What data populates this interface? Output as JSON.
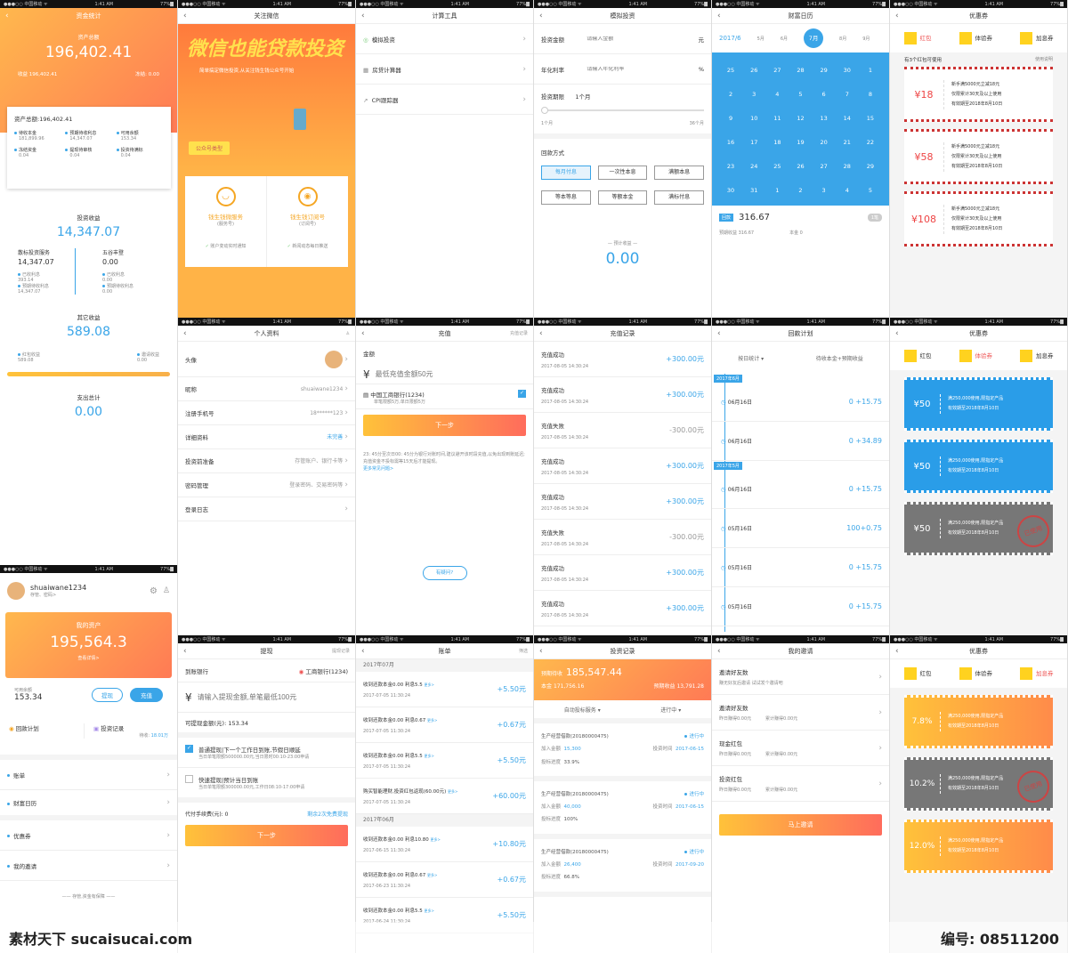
{
  "status": {
    "carrier": "●●●○○ 中国移动 ᯤ",
    "time": "1:41 AM",
    "battery": "77%▇"
  },
  "s1": {
    "title": "资金统计",
    "total_label": "资产总额",
    "total": "196,402.41",
    "sub_left": "收益 196,402.41",
    "sub_right": "冻结: 0.00",
    "card_title": "资产总额:196,402.41",
    "grid": [
      [
        "待收本金",
        "181,899.96"
      ],
      [
        "预期待收利息",
        "14,347.07"
      ],
      [
        "可用余额",
        "153.34"
      ],
      [
        "冻结资金",
        "0.04"
      ],
      [
        "提现待审核",
        "0.04"
      ],
      [
        "投资待满标",
        "0.04"
      ]
    ],
    "inv_label": "投资收益",
    "inv": "14,347.07",
    "col1": "散标投资服务",
    "col1v": "14,347.07",
    "col2": "五谷丰登",
    "col2v": "0.00",
    "c1a": "已收利息",
    "c1av": "393.14",
    "c1b": "预期待收利息",
    "c1bv": "14,347.07",
    "c2a": "已收利息",
    "c2av": "0.00",
    "c2b": "预期待收利息",
    "c2bv": "0.00",
    "other_label": "其它收益",
    "other": "589.08",
    "o1": "红包收益",
    "o1v": "589.08",
    "o2": "邀请收益",
    "o2v": "0.00",
    "exp_label": "支出总计",
    "exp": "0.00"
  },
  "s2": {
    "nav": "关注微信",
    "headline": "微信也能贷款投资",
    "sub": "简单搞定微信投资,从关注钱生钱公众号开始",
    "tag": "公众号类型",
    "c1": "钱生钱微服务",
    "c1s": "(服务号)",
    "c1f": "账户变动实时通知",
    "c2": "钱生钱订阅号",
    "c2s": "(订阅号)",
    "c2f": "新闻动态每日推送"
  },
  "s3": {
    "nav": "计算工具",
    "items": [
      "模拟投资",
      "房贷计算器",
      "CPI跟踪器"
    ]
  },
  "s4": {
    "nav": "模拟投资",
    "f1": "投资金额",
    "f1p": "请输入金额",
    "f1u": "元",
    "f2": "年化利率",
    "f2p": "请输入年化利率",
    "f2u": "%",
    "f3": "投资期限",
    "f3v": "1个月",
    "min": "1个月",
    "max": "36个月",
    "method": "回款方式",
    "m": [
      "每月付息",
      "一次性本息",
      "满额本息",
      "等本等息",
      "等额本金",
      "满标付息"
    ],
    "est": "预计收益",
    "estv": "0.00"
  },
  "s5": {
    "nav": "财富日历",
    "year": "2017/6",
    "months": [
      "5月",
      "6月",
      "7月",
      "8月",
      "9月"
    ],
    "days": [
      [
        "25",
        "26",
        "27",
        "28",
        "29",
        "30",
        "1"
      ],
      [
        "2",
        "3",
        "4",
        "5",
        "6",
        "7",
        "8"
      ],
      [
        "9",
        "10",
        "11",
        "12",
        "13",
        "14",
        "15"
      ],
      [
        "16",
        "17",
        "18",
        "19",
        "20",
        "21",
        "22"
      ],
      [
        "23",
        "24",
        "25",
        "26",
        "27",
        "28",
        "29"
      ],
      [
        "30",
        "31",
        "1",
        "2",
        "3",
        "4",
        "5"
      ]
    ],
    "tag": "回款",
    "amt": "316.67",
    "cnt": "1笔",
    "exp": "预期收益 316.67",
    "pri": "本金 0"
  },
  "s6": {
    "nav": "优惠券",
    "tabs": [
      "红包",
      "体验券",
      "加息券"
    ],
    "hint": "有3个红包可使用",
    "rule": "使用说明",
    "coupons": [
      {
        "v": "¥18",
        "l1": "新手满5000元立减18元",
        "l2": "仅限累计30天及以上使用",
        "l3": "有效期至2018年8月10日"
      },
      {
        "v": "¥58",
        "l1": "新手满5000元立减18元",
        "l2": "仅限累计30天及以上使用",
        "l3": "有效期至2018年8月10日"
      },
      {
        "v": "¥108",
        "l1": "新手满5000元立减18元",
        "l2": "仅限累计30天及以上使用",
        "l3": "有效期至2018年8月10日"
      }
    ]
  },
  "s7": {
    "nav": "个人资料",
    "rows": [
      [
        "头像",
        ""
      ],
      [
        "昵称",
        "shuaiwane1234"
      ],
      [
        "注册手机号",
        "18******123"
      ],
      [
        "详细资料",
        "未完善"
      ],
      [
        "投资前准备",
        "存管账户、银行卡等"
      ],
      [
        "密码管理",
        "登录密码、交易密码等"
      ],
      [
        "登录日志",
        ""
      ]
    ]
  },
  "s8": {
    "nav": "充值",
    "right": "充值记录",
    "amt_label": "金额",
    "ph": "最低充值金额50元",
    "bank": "中国工商银行(1234)",
    "limit": "单笔限额5万,单日限额5万",
    "btn": "下一步",
    "note": "23: 45分至次日00: 45分为银行对账时间,建议避开该时段充值,以免出现到账延迟;充值资金不投标需等15天后才能提现。",
    "more": "更多常见问题>",
    "help": "有疑问?"
  },
  "s9": {
    "nav": "充值记录",
    "rows": [
      [
        "充值成功",
        "2017-08-05  14:30:24",
        "+300.00元"
      ],
      [
        "充值成功",
        "2017-08-05  14:30:24",
        "+300.00元"
      ],
      [
        "充值失败",
        "2017-08-05  14:30:24",
        "-300.00元"
      ],
      [
        "充值成功",
        "2017-08-05  14:30:24",
        "+300.00元"
      ],
      [
        "充值成功",
        "2017-08-05  14:30:24",
        "+300.00元"
      ],
      [
        "充值失败",
        "2017-08-05  14:30:24",
        "-300.00元"
      ],
      [
        "充值成功",
        "2017-08-05  14:30:24",
        "+300.00元"
      ],
      [
        "充值成功",
        "2017-08-05  14:30:24",
        "+300.00元"
      ]
    ]
  },
  "s10": {
    "nav": "回款计划",
    "filter": "按日统计 ▾",
    "col": "待收本金+预期收益",
    "m1": "2017年6月",
    "m2": "2017年5月",
    "rows": [
      [
        "06月16日",
        "0 +15.75"
      ],
      [
        "06月16日",
        "0 +34.89"
      ],
      [
        "06月16日",
        "0 +15.75"
      ],
      [
        "05月16日",
        "100+0.75"
      ],
      [
        "05月16日",
        "0 +15.75"
      ],
      [
        "05月16日",
        "0 +15.75"
      ]
    ]
  },
  "s11": {
    "nav": "优惠券",
    "tabs": [
      "红包",
      "体验券",
      "加息券"
    ],
    "coupons": [
      {
        "v": "¥50",
        "l1": "满250,000使用,限指定产品",
        "l2": "有效期至2018年8月10日"
      },
      {
        "v": "¥50",
        "l1": "满250,000使用,限指定产品",
        "l2": "有效期至2018年8月10日"
      },
      {
        "v": "¥50",
        "l1": "满250,000使用,限指定产品",
        "l2": "有效期至2018年8月10日"
      }
    ],
    "stamp": "已使用"
  },
  "s12": {
    "user": "shuaiwane1234",
    "ustat": "存管、密码>",
    "asset_label": "我的资产",
    "asset": "195,564.3",
    "detail": "查看详情>",
    "avail_label": "可用余额",
    "avail": "153.34",
    "w": "提现",
    "c": "充值",
    "plan": "回款计划",
    "rec": "投资记录",
    "rec_sub": "待收:",
    "rec_v": "18.01万",
    "menu": [
      "账单",
      "财富日历",
      "优惠券",
      "我的邀请"
    ],
    "footer": "—— 存管,资金有保障 ——"
  },
  "s13": {
    "nav": "提现",
    "right": "提现记录",
    "bank_label": "到账银行",
    "bank": "工商银行(1234)",
    "ph": "请输入提现金额,单笔最低100元",
    "avail": "可提现金额(元): 153.34",
    "o1": "普通提现|下一个工作日到账,节假日顺延",
    "o1s": "当日单笔限额500000.00元,当日限时00:10-23:00申请",
    "o2": "快速提现|预计当日到账",
    "o2s": "当日单笔限额300000.00元,工作日08:10-17:00申请",
    "fee": "代付手续费(元): 0",
    "free": "剩余2次免费提现",
    "btn": "下一步"
  },
  "s14": {
    "nav": "账单",
    "right": "筛选",
    "m1": "2017年07月",
    "m2": "2017年06月",
    "rows": [
      [
        "收到还款本金0.00  利息5.5",
        "2017-07-05  11:30:24",
        "+5.50元"
      ],
      [
        "收到还款本金0.00  利息0.67",
        "2017-07-05  11:30:24",
        "+0.67元"
      ],
      [
        "收到还款本金0.00  利息5.5",
        "2017-07-05  11:30:24",
        "+5.50元"
      ],
      [
        "购买智能理财,投资红包返现(60.00元)",
        "2017-07-05  11:30:24",
        "+60.00元"
      ]
    ],
    "rows2": [
      [
        "收到还款本金0.00  利息10.80",
        "2017-06-15  11:30:24",
        "+10.80元"
      ],
      [
        "收到还款本金0.00  利息0.67",
        "2017-06-23  11:30:24",
        "+0.67元"
      ],
      [
        "收到还款本金0.00  利息5.5",
        "2017-06-24  11:30:24",
        "+5.50元"
      ]
    ]
  },
  "s15": {
    "nav": "投资记录",
    "due_label": "预期待收",
    "due": "185,547.44",
    "pri_label": "本金",
    "pri": "171,756.16",
    "exp_label": "预期收益",
    "exp": "13,791.28",
    "f1": "自动投标服务 ▾",
    "f2": "进行中 ▾",
    "items": [
      [
        "生产经营借款(20180000475)",
        "进行中",
        "15,300",
        "2017-06-15",
        "33.9%"
      ],
      [
        "生产经营借款(20180000475)",
        "进行中",
        "40,000",
        "2017-06-15",
        "100%"
      ],
      [
        "生产经营借款(20180000475)",
        "进行中",
        "26,400",
        "2017-09-20",
        "66.8%"
      ]
    ],
    "la": "加入金额",
    "lt": "投资时间",
    "lp": "投标进度"
  },
  "s16": {
    "nav": "我的邀请",
    "rows": [
      [
        "邀请好友数",
        "赚无好友后邀请 试试发个邀请吧",
        ""
      ],
      [
        "邀请好友数",
        "昨日赚得0.00元",
        "累计赚得0.00元"
      ],
      [
        "现金红包",
        "昨日赚得0.00元",
        "累计赚得0.00元"
      ],
      [
        "投资红包",
        "昨日赚得0.00元",
        "累计赚得0.00元"
      ]
    ],
    "btn": "马上邀请"
  },
  "s17": {
    "nav": "优惠券",
    "tabs": [
      "红包",
      "体验券",
      "加息券"
    ],
    "coupons": [
      {
        "v": "7.8%",
        "l1": "满250,000使用,限指定产品",
        "l2": "有效期至2018年8月10日"
      },
      {
        "v": "10.2%",
        "l1": "满250,000使用,限指定产品",
        "l2": "有效期至2018年8月10日"
      },
      {
        "v": "12.0%",
        "l1": "满250,000使用,限指定产品",
        "l2": "有效期至2018年8月10日"
      }
    ],
    "stamp": "已使用"
  },
  "watermark": {
    "left": "素材天下 sucaisucai.com",
    "right": "编号: 08511200"
  }
}
